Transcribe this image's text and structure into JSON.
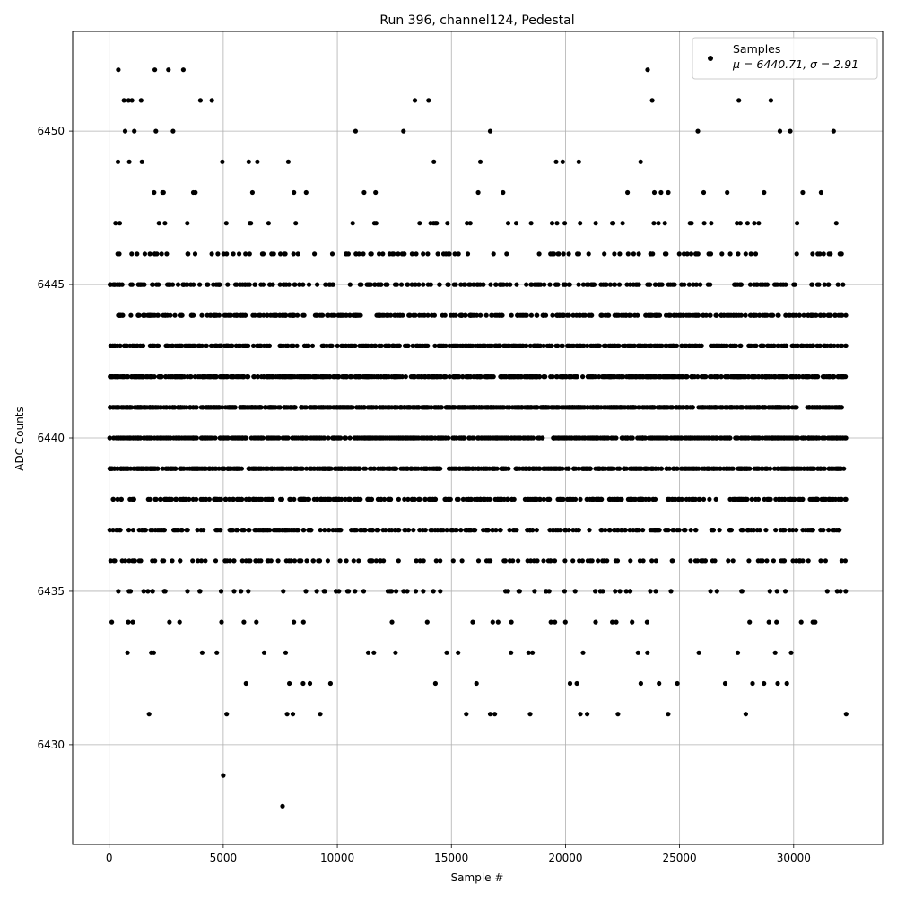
{
  "chart_data": {
    "type": "scatter",
    "title": "Run 396, channel124, Pedestal",
    "xlabel": "Sample #",
    "ylabel": "ADC Counts",
    "xlim": [
      -1600,
      33900
    ],
    "ylim": [
      6426.75,
      6453.25
    ],
    "xticks": [
      0,
      5000,
      10000,
      15000,
      20000,
      25000,
      30000
    ],
    "yticks": [
      6430,
      6435,
      6440,
      6445,
      6450
    ],
    "grid": true,
    "legend_position": "top-right",
    "marker_color": "#000000",
    "sample_count": 32300,
    "series": [
      {
        "name": "Samples",
        "stats_label": "μ = 6440.71, σ = 2.91",
        "mu": 6440.71,
        "sigma": 2.91,
        "note_points": [
          [
            400,
            6452
          ],
          [
            2000,
            6452
          ],
          [
            2600,
            6452
          ],
          [
            3250,
            6452
          ],
          [
            23600,
            6452
          ],
          [
            650,
            6451
          ],
          [
            850,
            6451
          ],
          [
            1000,
            6451
          ],
          [
            1400,
            6451
          ],
          [
            4000,
            6451
          ],
          [
            4500,
            6451
          ],
          [
            13400,
            6451
          ],
          [
            14000,
            6451
          ],
          [
            23800,
            6451
          ],
          [
            27600,
            6451
          ],
          [
            29000,
            6451
          ],
          [
            700,
            6450
          ],
          [
            1100,
            6450
          ],
          [
            2050,
            6450
          ],
          [
            2800,
            6450
          ],
          [
            10800,
            6450
          ],
          [
            12900,
            6450
          ],
          [
            16700,
            6450
          ],
          [
            25800,
            6450
          ],
          [
            29400,
            6450
          ],
          [
            29850,
            6450
          ],
          [
            31750,
            6450
          ],
          [
            1750,
            6431
          ],
          [
            5150,
            6431
          ],
          [
            7800,
            6431
          ],
          [
            8050,
            6431
          ],
          [
            9250,
            6431
          ],
          [
            15650,
            6431
          ],
          [
            16700,
            6431
          ],
          [
            16900,
            6431
          ],
          [
            18450,
            6431
          ],
          [
            20650,
            6431
          ],
          [
            20950,
            6431
          ],
          [
            22300,
            6431
          ],
          [
            24500,
            6431
          ],
          [
            27900,
            6431
          ],
          [
            32300,
            6431
          ],
          [
            6000,
            6432
          ],
          [
            7900,
            6432
          ],
          [
            8500,
            6432
          ],
          [
            8800,
            6432
          ],
          [
            9700,
            6432
          ],
          [
            14300,
            6432
          ],
          [
            16100,
            6432
          ],
          [
            20200,
            6432
          ],
          [
            20500,
            6432
          ],
          [
            23300,
            6432
          ],
          [
            24100,
            6432
          ],
          [
            24900,
            6432
          ],
          [
            27000,
            6432
          ],
          [
            28200,
            6432
          ],
          [
            28700,
            6432
          ],
          [
            29300,
            6432
          ],
          [
            29700,
            6432
          ],
          [
            5000,
            6429
          ],
          [
            7600,
            6428
          ]
        ]
      }
    ]
  }
}
